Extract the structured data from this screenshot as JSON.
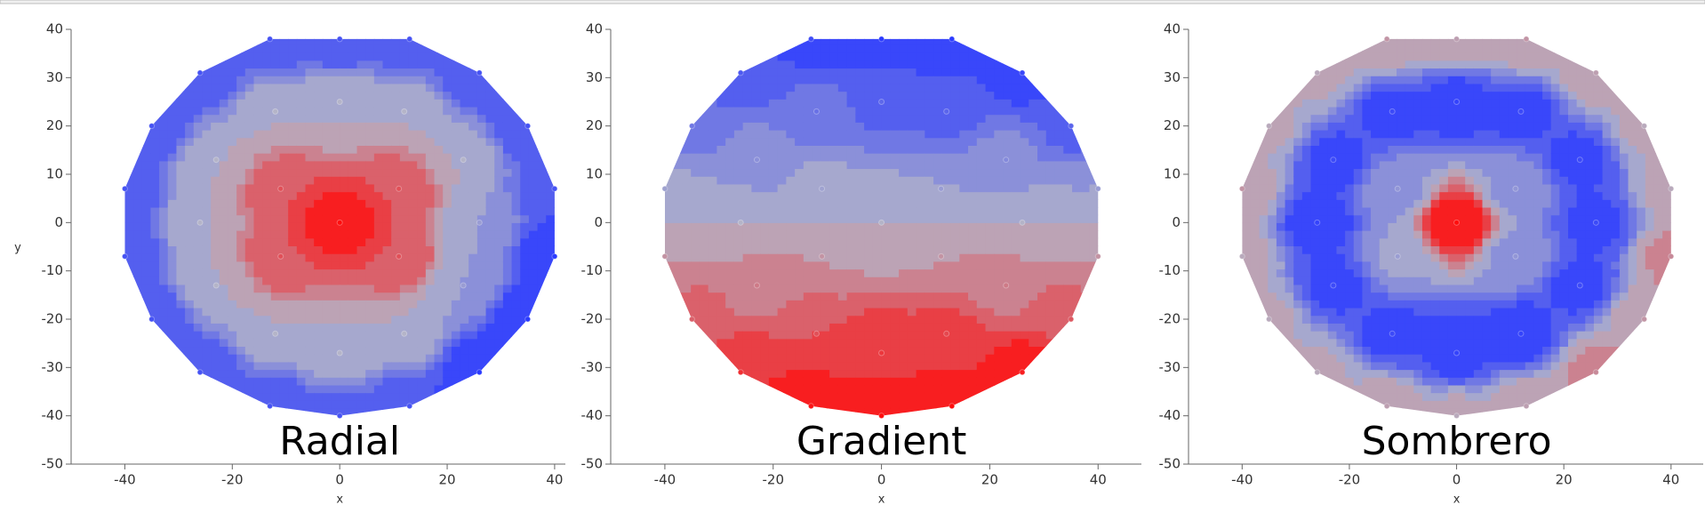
{
  "chart_data": [
    {
      "type": "contour",
      "title": "Radial",
      "x_label": "x",
      "y_label": "y",
      "xlim": [
        -50,
        42
      ],
      "ylim": [
        -50,
        40
      ],
      "xticks": [
        -40,
        -20,
        0,
        20,
        40
      ],
      "yticks": [
        -50,
        -40,
        -30,
        -20,
        -10,
        0,
        10,
        20,
        30,
        40
      ],
      "colors": [
        "#2b3bff",
        "#b4b4c8",
        "#ff0d0d"
      ],
      "levels": 10,
      "zlim": [
        -1,
        9
      ],
      "x": [
        0,
        13,
        26,
        35,
        40,
        40,
        35,
        26,
        13,
        0,
        -13,
        -26,
        -35,
        -40,
        -40,
        -35,
        -26,
        -13,
        0,
        12,
        23,
        26,
        23,
        12,
        0,
        -12,
        -23,
        -26,
        -23,
        -12,
        0,
        11,
        11,
        -11,
        -11
      ],
      "y": [
        38,
        38,
        31,
        20,
        7,
        -7,
        -20,
        -31,
        -38,
        -40,
        -38,
        -31,
        -20,
        -7,
        7,
        20,
        31,
        38,
        25,
        23,
        13,
        0,
        -13,
        -23,
        -27,
        -23,
        -13,
        0,
        13,
        23,
        0,
        7,
        -7,
        -7,
        7
      ],
      "z": [
        0,
        0,
        0,
        0,
        0,
        -1,
        -1,
        -1,
        0,
        0,
        0,
        0,
        0,
        0,
        0,
        0,
        0,
        0,
        4,
        4,
        4,
        3,
        3,
        4,
        4,
        4,
        4,
        4,
        4,
        4,
        9,
        7,
        7,
        7,
        7
      ]
    },
    {
      "type": "contour",
      "title": "Gradient",
      "x_label": "x",
      "xlim": [
        -50,
        48
      ],
      "ylim": [
        -50,
        40
      ],
      "xticks": [
        -40,
        -20,
        0,
        20,
        40
      ],
      "yticks": [
        -50,
        -40,
        -30,
        -20,
        -10,
        0,
        10,
        20,
        30,
        40
      ],
      "colors": [
        "#2b3bff",
        "#b4b4c8",
        "#ff0d0d"
      ],
      "levels": 10,
      "zlim": [
        -40,
        40
      ],
      "x": [
        0,
        13,
        26,
        35,
        40,
        40,
        35,
        26,
        13,
        0,
        -13,
        -26,
        -35,
        -40,
        -40,
        -35,
        -26,
        -13,
        0,
        12,
        23,
        26,
        23,
        12,
        0,
        -12,
        -23,
        -26,
        -23,
        -12,
        0,
        11,
        11,
        -11,
        -11
      ],
      "y": [
        38,
        38,
        31,
        20,
        7,
        -7,
        -20,
        -31,
        -38,
        -40,
        -38,
        -31,
        -20,
        -7,
        7,
        20,
        31,
        38,
        25,
        23,
        13,
        0,
        -13,
        -23,
        -27,
        -23,
        -13,
        0,
        13,
        23,
        0,
        7,
        -7,
        -7,
        7
      ],
      "z": [
        -40,
        -40,
        -36,
        -26,
        -8,
        8,
        22,
        36,
        40,
        40,
        38,
        32,
        20,
        8,
        -6,
        -20,
        -30,
        -34,
        -25,
        -26,
        -14,
        0,
        14,
        26,
        30,
        24,
        14,
        0,
        -12,
        -22,
        0,
        -8,
        8,
        8,
        -6
      ]
    },
    {
      "type": "contour",
      "title": "Sombrero",
      "x_label": "x",
      "xlim": [
        -50,
        46
      ],
      "ylim": [
        -50,
        40
      ],
      "xticks": [
        -40,
        -20,
        0,
        20,
        40
      ],
      "yticks": [
        -50,
        -40,
        -30,
        -20,
        -10,
        0,
        10,
        20,
        30,
        40
      ],
      "colors": [
        "#2b3bff",
        "#b4b4c8",
        "#ff0d0d"
      ],
      "levels": 10,
      "zlim": [
        -1.2,
        2
      ],
      "x": [
        0,
        13,
        26,
        35,
        40,
        40,
        35,
        26,
        13,
        0,
        -13,
        -26,
        -35,
        -40,
        -40,
        -35,
        -26,
        -13,
        0,
        12,
        23,
        26,
        23,
        12,
        0,
        -12,
        -23,
        -26,
        -23,
        -12,
        0,
        11,
        11,
        -11,
        -11
      ],
      "y": [
        38,
        38,
        31,
        20,
        7,
        -7,
        -20,
        -31,
        -38,
        -40,
        -38,
        -31,
        -20,
        -7,
        7,
        20,
        31,
        38,
        25,
        23,
        13,
        0,
        -13,
        -23,
        -27,
        -23,
        -13,
        0,
        13,
        23,
        0,
        7,
        -7,
        -7,
        7
      ],
      "z": [
        0.6,
        0.7,
        0.6,
        0.5,
        0.5,
        0.8,
        0.7,
        0.8,
        0.6,
        0.5,
        0.6,
        0.5,
        0.5,
        0.5,
        0.7,
        0.5,
        0.5,
        0.7,
        -1.1,
        -1,
        -1,
        -1,
        -1,
        -1.1,
        -1.1,
        -1,
        -1,
        -1.1,
        -1,
        -1,
        2,
        0,
        0,
        0.1,
        0
      ]
    }
  ]
}
